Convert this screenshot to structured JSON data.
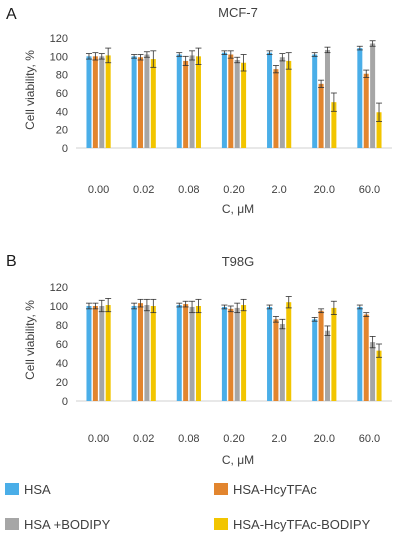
{
  "figure": {
    "legend": [
      {
        "label": "HSA",
        "color": "#4aaee8"
      },
      {
        "label": "HSA-HcyTFAc",
        "color": "#e2852e"
      },
      {
        "label": "HSA +BODIPY",
        "color": "#a6a6a6"
      },
      {
        "label": "HSA-HcyTFAc-BODIPY",
        "color": "#f2c500"
      }
    ]
  },
  "chart_data": [
    {
      "type": "bar",
      "panel": "A",
      "title": "MCF-7",
      "xlabel": "C, μM",
      "ylabel": "Cell viability, %",
      "ylim": [
        0,
        120
      ],
      "yticks": [
        0,
        20,
        40,
        60,
        80,
        100,
        120
      ],
      "grid": false,
      "legend": "bottom",
      "categories": [
        "0.00",
        "0.02",
        "0.08",
        "0.20",
        "2.0",
        "20.0",
        "60.0"
      ],
      "series": [
        {
          "name": "HSA",
          "values": [
            100,
            100,
            102,
            104,
            104,
            102,
            109
          ],
          "errors": [
            3,
            2,
            2,
            2,
            2,
            2,
            2
          ]
        },
        {
          "name": "HSA-HcyTFAc",
          "values": [
            100,
            99,
            95,
            102,
            86,
            70,
            81
          ],
          "errors": [
            4,
            3,
            5,
            4,
            4,
            4,
            4
          ]
        },
        {
          "name": "HSA +BODIPY",
          "values": [
            100,
            102,
            101,
            96,
            99,
            107,
            114
          ],
          "errors": [
            3,
            3,
            5,
            3,
            4,
            3,
            3
          ]
        },
        {
          "name": "HSA-HcyTFAc-BODIPY",
          "values": [
            101,
            97,
            100,
            93,
            95,
            50,
            39
          ],
          "errors": [
            8,
            9,
            9,
            9,
            9,
            10,
            10
          ]
        }
      ]
    },
    {
      "type": "bar",
      "panel": "B",
      "title": "T98G",
      "xlabel": "C, μM",
      "ylabel": "Cell viability, %",
      "ylim": [
        0,
        120
      ],
      "yticks": [
        0,
        20,
        40,
        60,
        80,
        100,
        120
      ],
      "grid": false,
      "legend": "bottom",
      "categories": [
        "0.00",
        "0.02",
        "0.08",
        "0.20",
        "2.0",
        "20.0",
        "60.0"
      ],
      "series": [
        {
          "name": "HSA",
          "values": [
            100,
            100,
            101,
            99,
            99,
            86,
            99
          ],
          "errors": [
            3,
            3,
            2,
            2,
            2,
            2,
            2
          ]
        },
        {
          "name": "HSA-HcyTFAc",
          "values": [
            100,
            103,
            102,
            97,
            86,
            95,
            91
          ],
          "errors": [
            3,
            4,
            3,
            3,
            3,
            2,
            2
          ]
        },
        {
          "name": "HSA +BODIPY",
          "values": [
            100,
            101,
            99,
            98,
            81,
            74,
            62
          ],
          "errors": [
            6,
            6,
            6,
            5,
            5,
            5,
            6
          ]
        },
        {
          "name": "HSA-HcyTFAc-BODIPY",
          "values": [
            101,
            100,
            100,
            101,
            104,
            98,
            53
          ],
          "errors": [
            7,
            7,
            7,
            6,
            6,
            7,
            7
          ]
        }
      ]
    }
  ]
}
